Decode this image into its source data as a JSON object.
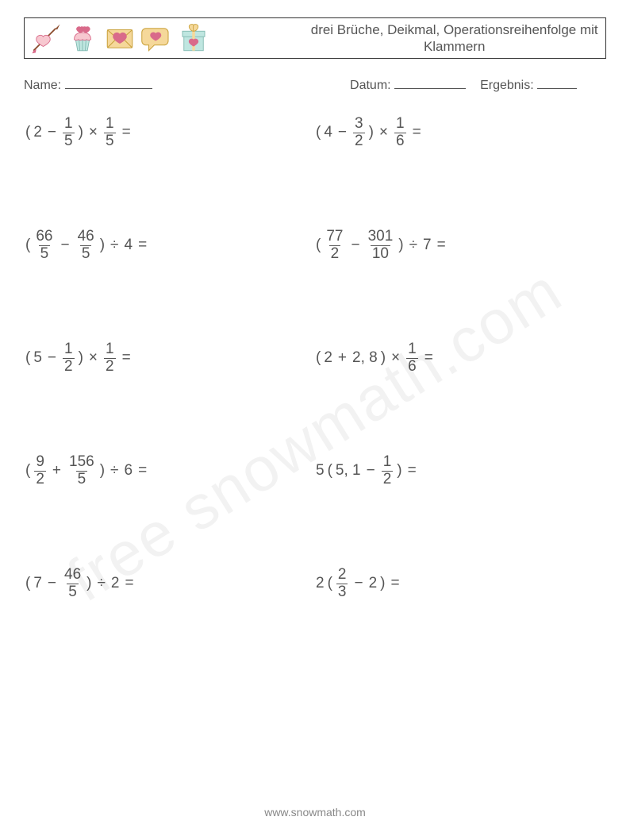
{
  "header": {
    "title": "drei Brüche, Deikmal, Operationsreihenfolge mit Klammern",
    "icons": [
      {
        "name": "arrow-heart-icon",
        "colors": {
          "c1": "#f7c8d0",
          "c2": "#d96a8a",
          "c3": "#8a4a2a"
        }
      },
      {
        "name": "cupcake-icon",
        "colors": {
          "c1": "#bfe6e0",
          "c2": "#f7c8d0",
          "c3": "#d96a8a"
        }
      },
      {
        "name": "envelope-heart-icon",
        "colors": {
          "c1": "#f5d89a",
          "c2": "#d96a8a"
        }
      },
      {
        "name": "chat-heart-icon",
        "colors": {
          "c1": "#f5d89a",
          "c2": "#d96a8a"
        }
      },
      {
        "name": "gift-heart-icon",
        "colors": {
          "c1": "#bfe6e0",
          "c2": "#d96a8a",
          "c3": "#f5d89a"
        }
      }
    ]
  },
  "meta": {
    "name_label": "Name:",
    "date_label": "Datum:",
    "result_label": "Ergebnis:",
    "name_underline_w": 110,
    "date_underline_w": 90,
    "result_underline_w": 50
  },
  "symbols": {
    "minus": "−",
    "plus": "+",
    "times": "×",
    "divide": "÷",
    "equals": "=",
    "lparen": "(",
    "rparen": ")"
  },
  "problems": [
    [
      {
        "type": "paren_int_minus_frac_times_frac",
        "a": "2",
        "f1n": "1",
        "f1d": "5",
        "f2n": "1",
        "f2d": "5"
      },
      {
        "type": "paren_int_minus_frac_times_frac",
        "a": "4",
        "f1n": "3",
        "f1d": "2",
        "f2n": "1",
        "f2d": "6"
      }
    ],
    [
      {
        "type": "paren_frac_minus_frac_div_int",
        "f1n": "66",
        "f1d": "5",
        "f2n": "46",
        "f2d": "5",
        "b": "4"
      },
      {
        "type": "paren_frac_minus_frac_div_int",
        "f1n": "77",
        "f1d": "2",
        "f2n": "301",
        "f2d": "10",
        "b": "7"
      }
    ],
    [
      {
        "type": "paren_int_minus_frac_times_frac",
        "a": "5",
        "f1n": "1",
        "f1d": "2",
        "f2n": "1",
        "f2d": "2"
      },
      {
        "type": "paren_int_plus_dec_times_frac",
        "a": "2",
        "dec": "2, 8",
        "f2n": "1",
        "f2d": "6"
      }
    ],
    [
      {
        "type": "paren_frac_plus_frac_div_int",
        "f1n": "9",
        "f1d": "2",
        "f2n": "156",
        "f2d": "5",
        "b": "6"
      },
      {
        "type": "coef_paren_dec_minus_frac",
        "coef": "5",
        "dec": "5, 1",
        "f1n": "1",
        "f1d": "2"
      }
    ],
    [
      {
        "type": "paren_int_minus_frac_div_int",
        "a": "7",
        "f1n": "46",
        "f1d": "5",
        "b": "2"
      },
      {
        "type": "coef_paren_frac_minus_int",
        "coef": "2",
        "f1n": "2",
        "f1d": "3",
        "b": "2"
      }
    ]
  ],
  "watermark": "free  snowmath.com",
  "footer": "www.snowmath.com"
}
